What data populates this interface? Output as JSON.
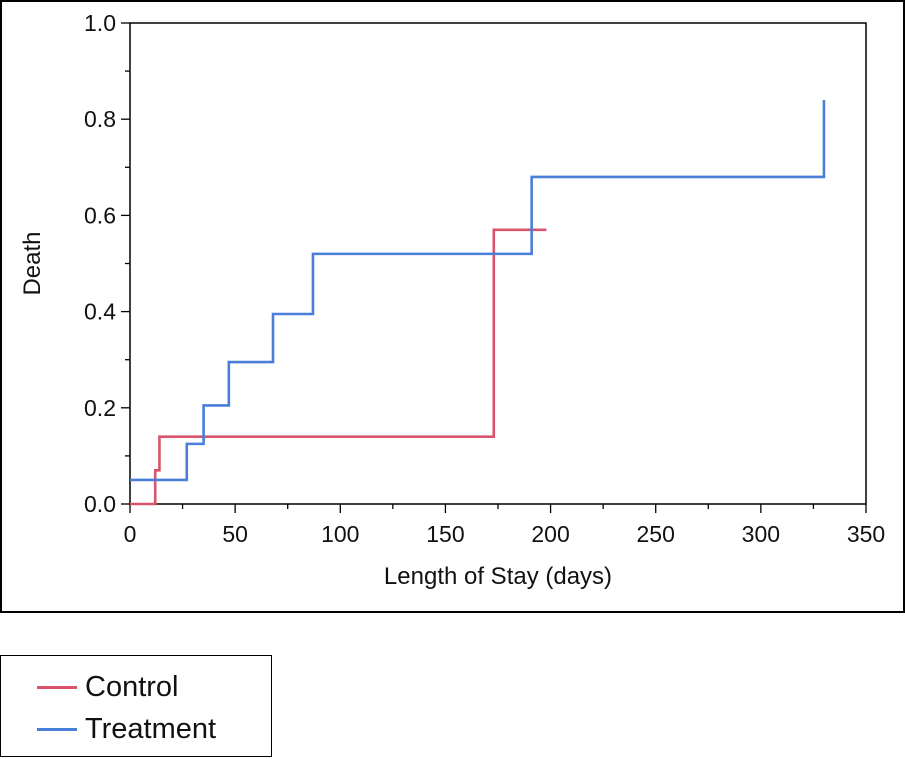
{
  "chart_data": {
    "type": "line",
    "step": true,
    "xlabel": "Length of Stay (days)",
    "ylabel": "Death",
    "xlim": [
      0,
      350
    ],
    "ylim": [
      0,
      1.0
    ],
    "xticks": [
      0,
      50,
      100,
      150,
      200,
      250,
      300,
      350
    ],
    "xtick_labels": [
      "0",
      "50",
      "100",
      "150",
      "200",
      "250",
      "300",
      "350"
    ],
    "yticks": [
      0.0,
      0.2,
      0.4,
      0.6,
      0.8,
      1.0
    ],
    "ytick_labels": [
      "0.0",
      "0.2",
      "0.4",
      "0.6",
      "0.8",
      "1.0"
    ],
    "grid": false,
    "legend_position": "bottom-left",
    "series": [
      {
        "name": "Control",
        "color": "#d9546a",
        "x": [
          0,
          10,
          12,
          14,
          173,
          198
        ],
        "y": [
          0.0,
          0.0,
          0.07,
          0.14,
          0.57,
          0.57
        ]
      },
      {
        "name": "Treatment",
        "color": "#4a7fd9",
        "x": [
          0,
          24,
          27,
          35,
          47,
          68,
          87,
          191,
          330
        ],
        "y": [
          0.05,
          0.05,
          0.125,
          0.205,
          0.295,
          0.395,
          0.52,
          0.68,
          0.84
        ]
      }
    ]
  }
}
